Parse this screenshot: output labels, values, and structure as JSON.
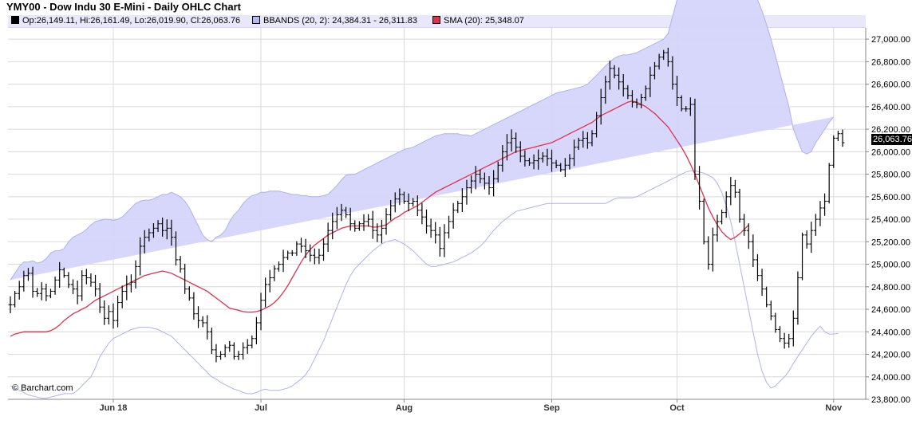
{
  "title": "YMY00 - Dow Indu 30 E-Mini - Daily OHLC Chart",
  "legend": {
    "ohlc": "Op:26,149.11, Hi:26,161.49, Lo:26,019.90, Cl:26,063.76",
    "bbands": "BBANDS (20, 2): 24,384.31 - 26,311.83",
    "sma": "SMA (20): 25,348.07"
  },
  "credit": "© Barchart.com",
  "last_price_label": "26,063.76",
  "colors": {
    "band_fill": "#d5d5fb",
    "band_line": "#b0b0ee",
    "sma": "#e0304a",
    "bars": "#000000",
    "grid": "#d9d9d9"
  },
  "chart_data": {
    "type": "ohlc",
    "ylim": [
      23800,
      27100
    ],
    "y_ticks": [
      "27,000.00",
      "26,800.00",
      "26,600.00",
      "26,400.00",
      "26,200.00",
      "26,000.00",
      "25,800.00",
      "25,600.00",
      "25,400.00",
      "25,200.00",
      "25,000.00",
      "24,800.00",
      "24,600.00",
      "24,400.00",
      "24,200.00",
      "24,000.00",
      "23,800.00"
    ],
    "y_tick_values": [
      27000,
      26800,
      26600,
      26400,
      26200,
      26000,
      25800,
      25600,
      25400,
      25200,
      25000,
      24800,
      24600,
      24400,
      24200,
      24000,
      23800
    ],
    "x_labels": [
      {
        "label": "Jun 18",
        "index": 23
      },
      {
        "label": "Jul",
        "index": 56
      },
      {
        "label": "Aug",
        "index": 88
      },
      {
        "label": "Sep",
        "index": 121
      },
      {
        "label": "Oct",
        "index": 149
      },
      {
        "label": "Nov",
        "index": 184
      }
    ],
    "close": [
      24640,
      24740,
      24800,
      24900,
      24920,
      24760,
      24740,
      24780,
      24720,
      24760,
      24860,
      24950,
      24900,
      24820,
      24780,
      24720,
      24900,
      24880,
      24840,
      24780,
      24620,
      24520,
      24580,
      24500,
      24660,
      24760,
      24820,
      24840,
      24980,
      25160,
      25240,
      25280,
      25320,
      25360,
      25300,
      25320,
      25240,
      25040,
      24960,
      24780,
      24700,
      24560,
      24500,
      24480,
      24400,
      24240,
      24180,
      24200,
      24260,
      24280,
      24180,
      24200,
      24260,
      24280,
      24340,
      24480,
      24680,
      24820,
      24880,
      24960,
      25000,
      25060,
      25100,
      25100,
      25180,
      25160,
      25120,
      25080,
      25060,
      25080,
      25180,
      25300,
      25380,
      25440,
      25480,
      25440,
      25360,
      25320,
      25360,
      25380,
      25400,
      25300,
      25260,
      25320,
      25440,
      25520,
      25580,
      25620,
      25560,
      25540,
      25560,
      25480,
      25420,
      25340,
      25300,
      25260,
      25140,
      25280,
      25380,
      25480,
      25540,
      25600,
      25680,
      25740,
      25800,
      25760,
      25720,
      25680,
      25760,
      25880,
      26000,
      26080,
      26120,
      26040,
      25960,
      25920,
      25900,
      25920,
      25940,
      25960,
      25940,
      25900,
      25880,
      25840,
      25880,
      25940,
      26040,
      26100,
      26120,
      26080,
      26160,
      26320,
      26480,
      26620,
      26740,
      26680,
      26620,
      26560,
      26500,
      26440,
      26420,
      26480,
      26560,
      26680,
      26760,
      26840,
      26880,
      26800,
      26600,
      26480,
      26380,
      26380,
      26420,
      25800,
      25560,
      25200,
      25000,
      25260,
      25380,
      25460,
      25600,
      25700,
      25640,
      25400,
      25300,
      25200,
      25040,
      24900,
      24780,
      24640,
      24540,
      24420,
      24340,
      24300,
      24340,
      24520,
      24880,
      25260,
      25180,
      25300,
      25400,
      25500,
      25560,
      25880,
      26120,
      26160,
      26080
    ],
    "bollinger_upper": [
      24860,
      24920,
      24980,
      25020,
      25020,
      25030,
      25010,
      25020,
      25050,
      25100,
      25120,
      25120,
      25140,
      25200,
      25240,
      25260,
      25280,
      25310,
      25350,
      25380,
      25390,
      25400,
      25400,
      25390,
      25400,
      25420,
      25460,
      25500,
      25540,
      25560,
      25570,
      25570,
      25580,
      25600,
      25620,
      25620,
      25640,
      25620,
      25600,
      25560,
      25500,
      25420,
      25340,
      25260,
      25220,
      25200,
      25240,
      25260,
      25300,
      25380,
      25440,
      25480,
      25540,
      25580,
      25610,
      25620,
      25640,
      25640,
      25650,
      25650,
      25650,
      25640,
      25630,
      25620,
      25620,
      25610,
      25610,
      25600,
      25600,
      25600,
      25610,
      25620,
      25660,
      25700,
      25750,
      25790,
      25800,
      25800,
      25820,
      25840,
      25860,
      25880,
      25900,
      25920,
      25940,
      25960,
      25980,
      26000,
      26020,
      26030,
      26040,
      26060,
      26080,
      26100,
      26120,
      26140,
      26150,
      26160,
      26160,
      26160,
      26160,
      26150,
      26150,
      26140,
      26160,
      26180,
      26200,
      26220,
      26240,
      26260,
      26280,
      26300,
      26320,
      26340,
      26360,
      26380,
      26400,
      26420,
      26440,
      26460,
      26480,
      26500,
      26520,
      26530,
      26540,
      26550,
      26560,
      26570,
      26580,
      26600,
      26640,
      26680,
      26720,
      26760,
      26800,
      26830,
      26850,
      26860,
      26860,
      26870,
      26880,
      26900,
      26920,
      26940,
      26960,
      26980,
      27000,
      27050,
      27200,
      27350,
      27500,
      27600,
      27620,
      27630,
      27650,
      27660,
      27670,
      27680,
      27700,
      27690,
      27660,
      27640,
      27620,
      27600,
      27560,
      27500,
      27430,
      27350,
      27250,
      27130,
      27000,
      26850,
      26700,
      26550,
      26400,
      26200,
      26100,
      26000,
      25980,
      26000,
      26080,
      26140,
      26200,
      26260,
      26310
    ],
    "bollinger_lower": [
      23920,
      23900,
      23880,
      23860,
      23840,
      23830,
      23820,
      23810,
      23810,
      23820,
      23830,
      23840,
      23850,
      23850,
      23850,
      23880,
      23920,
      23960,
      24000,
      24080,
      24180,
      24240,
      24300,
      24340,
      24360,
      24380,
      24400,
      24420,
      24430,
      24440,
      24440,
      24440,
      24430,
      24420,
      24400,
      24380,
      24360,
      24320,
      24280,
      24240,
      24200,
      24160,
      24120,
      24080,
      24040,
      24000,
      23980,
      23950,
      23930,
      23910,
      23890,
      23880,
      23860,
      23850,
      23850,
      23860,
      23880,
      23890,
      23880,
      23880,
      23880,
      23890,
      23900,
      23920,
      23950,
      23980,
      24020,
      24080,
      24160,
      24240,
      24320,
      24420,
      24520,
      24620,
      24720,
      24820,
      24900,
      24960,
      25000,
      25040,
      25080,
      25120,
      25150,
      25180,
      25200,
      25210,
      25220,
      25200,
      25180,
      25150,
      25120,
      25080,
      25040,
      25000,
      24980,
      24980,
      24990,
      25000,
      25010,
      25020,
      25040,
      25060,
      25080,
      25100,
      25130,
      25160,
      25200,
      25250,
      25300,
      25340,
      25380,
      25410,
      25440,
      25470,
      25480,
      25490,
      25500,
      25510,
      25520,
      25530,
      25540,
      25540,
      25540,
      25540,
      25540,
      25540,
      25540,
      25540,
      25540,
      25540,
      25540,
      25540,
      25540,
      25540,
      25560,
      25580,
      25590,
      25590,
      25590,
      25590,
      25600,
      25620,
      25640,
      25660,
      25680,
      25700,
      25720,
      25740,
      25760,
      25780,
      25800,
      25820,
      25830,
      25830,
      25820,
      25810,
      25790,
      25770,
      25720,
      25640,
      25520,
      25380,
      25200,
      25000,
      24800,
      24600,
      24400,
      24200,
      24050,
      23950,
      23900,
      23920,
      23960,
      24000,
      24050,
      24120,
      24180,
      24240,
      24300,
      24360,
      24410,
      24450,
      24400,
      24380,
      24380,
      24384
    ],
    "sma": [
      24360,
      24380,
      24390,
      24400,
      24400,
      24400,
      24400,
      24400,
      24400,
      24410,
      24430,
      24460,
      24500,
      24530,
      24560,
      24580,
      24600,
      24620,
      24650,
      24680,
      24700,
      24720,
      24740,
      24760,
      24780,
      24800,
      24820,
      24840,
      24860,
      24880,
      24900,
      24910,
      24920,
      24930,
      24940,
      24930,
      24920,
      24900,
      24880,
      24860,
      24840,
      24820,
      24800,
      24780,
      24760,
      24730,
      24700,
      24670,
      24640,
      24610,
      24600,
      24590,
      24580,
      24575,
      24575,
      24580,
      24590,
      24610,
      24630,
      24660,
      24700,
      24750,
      24810,
      24880,
      24950,
      25020,
      25080,
      25130,
      25170,
      25200,
      25230,
      25260,
      25280,
      25300,
      25320,
      25330,
      25340,
      25340,
      25340,
      25340,
      25340,
      25330,
      25330,
      25340,
      25350,
      25380,
      25410,
      25430,
      25460,
      25480,
      25500,
      25520,
      25550,
      25580,
      25610,
      25640,
      25660,
      25680,
      25700,
      25720,
      25740,
      25760,
      25780,
      25800,
      25820,
      25840,
      25860,
      25880,
      25900,
      25920,
      25940,
      25960,
      25980,
      26000,
      26010,
      26020,
      26030,
      26040,
      26050,
      26060,
      26070,
      26080,
      26100,
      26120,
      26140,
      26160,
      26180,
      26200,
      26220,
      26240,
      26260,
      26290,
      26320,
      26340,
      26360,
      26380,
      26400,
      26420,
      26440,
      26450,
      26440,
      26420,
      26400,
      26370,
      26340,
      26300,
      26260,
      26220,
      26160,
      26100,
      26040,
      25970,
      25890,
      25800,
      25700,
      25600,
      25500,
      25420,
      25350,
      25290,
      25250,
      25220,
      25240,
      25270,
      25310,
      25348
    ],
    "bar_count": 187
  }
}
